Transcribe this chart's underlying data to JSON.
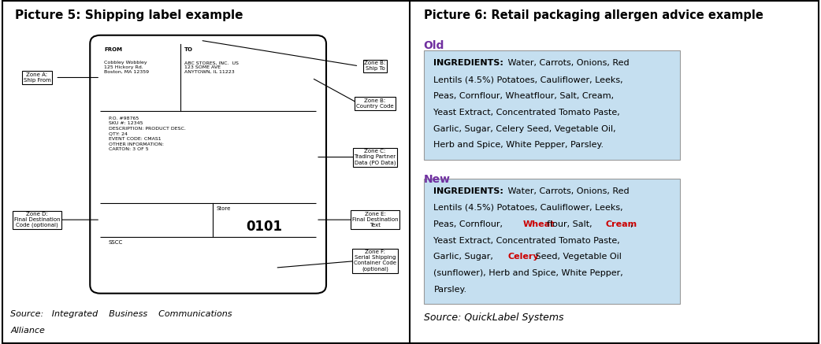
{
  "fig_width": 10.42,
  "fig_height": 4.37,
  "dpi": 100,
  "bg_color": "#ffffff",
  "border_color": "#000000",
  "left_title": "Picture 5: Shipping label example",
  "right_title": "Picture 6: Retail packaging allergen advice example",
  "source_left_line1": "Source:   Integrated    Business    Communications",
  "source_left_line2": "Alliance",
  "source_right": "Source: QuickLabel Systems",
  "old_label": "Old",
  "new_label": "New",
  "label_color": "#7030a0",
  "allergen_color": "#cc0000",
  "box_bg": "#c5dff0",
  "zone_a_text": "Zone A:\nShip From",
  "zone_b_ship_text": "Zone B:\nShip To",
  "zone_b_country_text": "Zone B:\nCountry Code",
  "zone_c_text": "Zone C:\nTrading Partner\nData (PO Data)",
  "zone_d_text": "Zone D:\nFinal Destination\nCode (optional)",
  "zone_e_text": "Zone E:\nFinal Destination\nText",
  "zone_f_text": "Zone F:\nSerial Shipping\nContainer Code\n(optional)",
  "from_label": "FROM",
  "from_address": "Cobbley Wobbley\n125 Hickory Rd.\nBoston, MA 12359",
  "to_label": "TO",
  "to_address": "ABC STORES, INC.  US\n123 SOME AVE\nANYTOWN, IL 11223",
  "po_data": "P.O. #98765\nSKU #: 12345\nDESCRIPTION: PRODUCT DESC.\nQTY: 24\nEVENT CODE: CMAS1\nOTHER INFORMATION:\nCARTON: 3 OF 5",
  "sscc_label": "SSCC",
  "store_label": "Store",
  "store_number": "0101"
}
